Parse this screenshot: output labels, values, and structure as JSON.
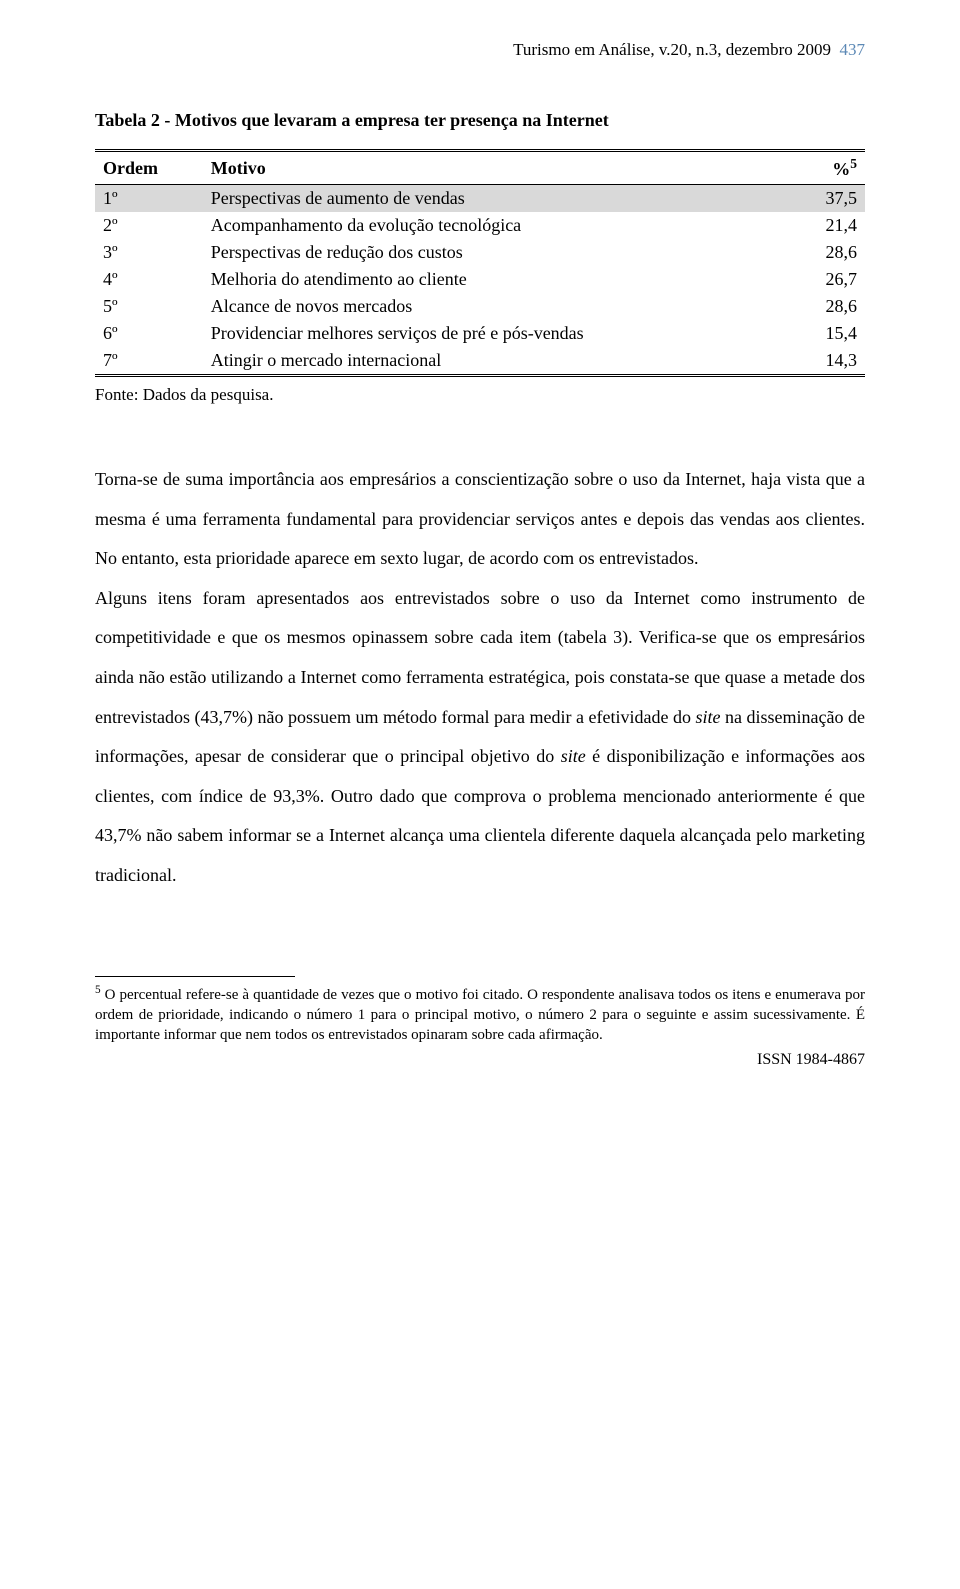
{
  "header": {
    "journal": "Turismo em Análise, v.20, n.3, dezembro 2009",
    "page_number": "437"
  },
  "table": {
    "title": "Tabela 2 - Motivos que levaram a empresa ter presença na Internet",
    "columns": {
      "ordem": "Ordem",
      "motivo": "Motivo",
      "percent_label": "%",
      "percent_sup": "5"
    },
    "rows": [
      {
        "ordem": "1º",
        "motivo": "Perspectivas de aumento de vendas",
        "value": "37,5",
        "highlight": true
      },
      {
        "ordem": "2º",
        "motivo": "Acompanhamento da evolução tecnológica",
        "value": "21,4",
        "highlight": false
      },
      {
        "ordem": "3º",
        "motivo": "Perspectivas de redução dos custos",
        "value": "28,6",
        "highlight": false
      },
      {
        "ordem": "4º",
        "motivo": "Melhoria do atendimento ao cliente",
        "value": "26,7",
        "highlight": false
      },
      {
        "ordem": "5º",
        "motivo": "Alcance de novos mercados",
        "value": "28,6",
        "highlight": false
      },
      {
        "ordem": "6º",
        "motivo": "Providenciar melhores serviços de pré e pós-vendas",
        "value": "15,4",
        "highlight": false
      },
      {
        "ordem": "7º",
        "motivo": "Atingir o mercado internacional",
        "value": "14,3",
        "highlight": false
      }
    ],
    "source": "Fonte: Dados da pesquisa."
  },
  "paragraphs": {
    "p1a": "Torna-se de suma importância aos empresários a conscientização sobre o uso da Internet, haja vista que a mesma é uma ferramenta fundamental para providenciar serviços antes e depois das vendas aos clientes. No entanto, esta prioridade aparece em sexto lugar, de acordo com os entrevistados.",
    "p2a": "Alguns itens foram apresentados aos entrevistados sobre o uso da Internet como instrumento de competitividade e que os mesmos opinassem sobre cada item (tabela 3). Verifica-se que os empresários ainda não estão utilizando a Internet como ferramenta estratégica, pois constata-se que quase a metade dos entrevistados (43,7%) não possuem um método formal para medir a efetividade do ",
    "p2_site1": "site",
    "p2b": " na disseminação de informações, apesar de considerar que o principal objetivo do ",
    "p2_site2": "site",
    "p2c": " é disponibilização e informações aos clientes, com índice de 93,3%. Outro dado que comprova o problema mencionado anteriormente é que 43,7% não sabem informar se a Internet alcança uma clientela diferente daquela alcançada pelo marketing tradicional."
  },
  "footnote": {
    "marker": "5",
    "text": " O percentual refere-se à quantidade de vezes que o motivo foi citado. O respondente analisava todos os itens e enumerava por ordem de prioridade, indicando o número 1 para o principal motivo, o número 2 para o seguinte e assim sucessivamente. É importante informar que nem todos os entrevistados opinaram sobre cada afirmação."
  },
  "issn": "ISSN 1984-4867"
}
